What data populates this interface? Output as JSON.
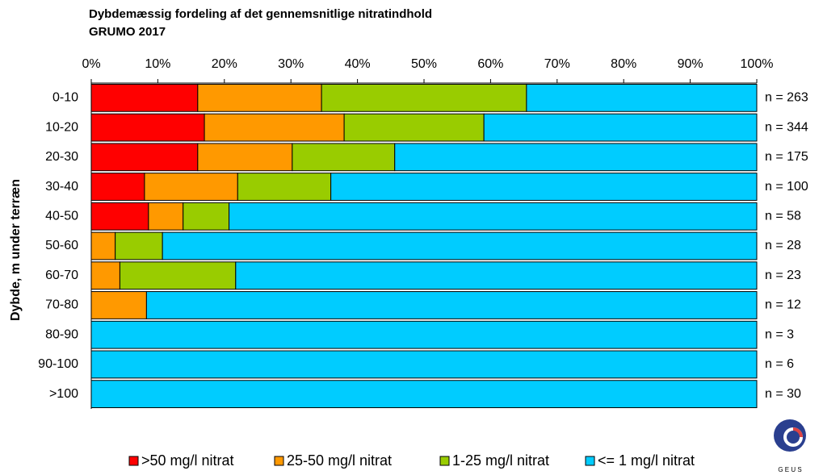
{
  "chart_data": {
    "type": "stacked_barh",
    "title": "Dybdemæssig fordeling af det gennemsnitlige nitratindhold",
    "subtitle": "GRUMO 2017",
    "ylabel": "Dybde, m under terræn",
    "categories": [
      "0-10",
      "10-20",
      "20-30",
      "30-40",
      "40-50",
      "50-60",
      "60-70",
      "70-80",
      "80-90",
      "90-100",
      ">100"
    ],
    "annotations": [
      "n = 263",
      "n = 344",
      "n = 175",
      "n = 100",
      "n = 58",
      "n = 28",
      "n = 23",
      "n = 12",
      "n = 3",
      "n = 6",
      "n = 30"
    ],
    "series": [
      {
        "name": ">50 mg/l nitrat",
        "color": "#ff0000",
        "values": [
          16,
          17,
          16,
          8,
          8.6,
          0,
          0,
          0,
          0,
          0,
          0
        ]
      },
      {
        "name": "25-50 mg/l nitrat",
        "color": "#ff9900",
        "values": [
          18.6,
          21,
          14.2,
          14,
          5.2,
          3.6,
          4.3,
          8.3,
          0,
          0,
          0
        ]
      },
      {
        "name": "1-25 mg/l nitrat",
        "color": "#99cc00",
        "values": [
          30.8,
          21,
          15.4,
          14,
          6.9,
          7.1,
          17.4,
          0,
          0,
          0,
          0
        ]
      },
      {
        "name": "<= 1 mg/l nitrat",
        "color": "#00ccff",
        "values": [
          34.6,
          41,
          54.4,
          64,
          79.3,
          89.3,
          78.3,
          91.7,
          100,
          100,
          100
        ]
      }
    ],
    "xlim": [
      0,
      100
    ],
    "xticks": [
      {
        "value": 0,
        "label": "0%"
      },
      {
        "value": 10,
        "label": "10%"
      },
      {
        "value": 20,
        "label": "20%"
      },
      {
        "value": 30,
        "label": "30%"
      },
      {
        "value": 40,
        "label": "40%"
      },
      {
        "value": 50,
        "label": "50%"
      },
      {
        "value": 60,
        "label": "60%"
      },
      {
        "value": 70,
        "label": "70%"
      },
      {
        "value": 80,
        "label": "80%"
      },
      {
        "value": 90,
        "label": "90%"
      },
      {
        "value": 100,
        "label": "100%"
      }
    ],
    "legend": "bottom",
    "logo_text": "G E U S"
  }
}
